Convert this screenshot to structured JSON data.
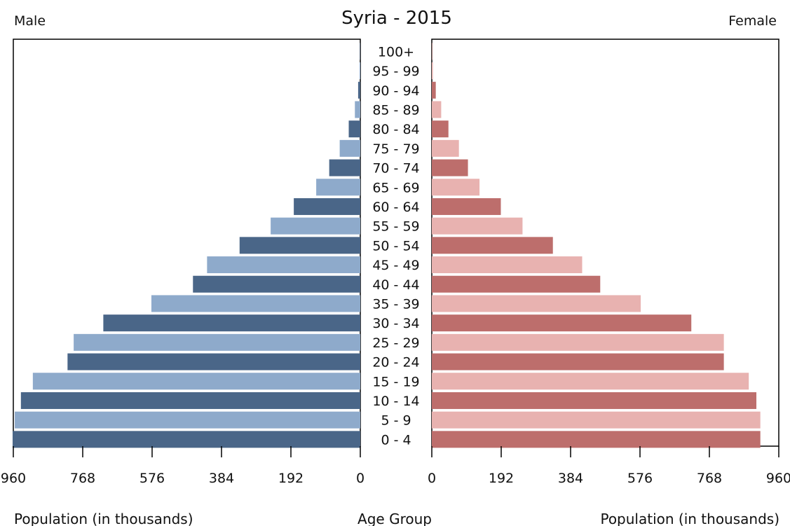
{
  "chart_data": {
    "type": "bar",
    "title": "Syria - 2015",
    "left_label": "Male",
    "right_label": "Female",
    "xlabel_left": "Population (in thousands)",
    "xlabel_center": "Age Group",
    "xlabel_right": "Population (in thousands)",
    "xlim": [
      0,
      960
    ],
    "x_ticks": [
      960,
      768,
      576,
      384,
      192,
      0
    ],
    "x_ticks_right": [
      0,
      192,
      384,
      576,
      768,
      960
    ],
    "categories": [
      "100+",
      "95 - 99",
      "90 - 94",
      "85 - 89",
      "80 - 84",
      "75 - 79",
      "70 - 74",
      "65 - 69",
      "60 - 64",
      "55 - 59",
      "50 - 54",
      "45 - 49",
      "40 - 44",
      "35 - 39",
      "30 - 34",
      "25 - 29",
      "20 - 24",
      "15 - 19",
      "10 - 14",
      "5 - 9",
      "0 - 4"
    ],
    "series": [
      {
        "name": "Male",
        "values": [
          1,
          2,
          6,
          15,
          32,
          57,
          86,
          122,
          184,
          248,
          334,
          424,
          463,
          578,
          711,
          793,
          810,
          906,
          939,
          956,
          962
        ]
      },
      {
        "name": "Female",
        "values": [
          1,
          3,
          11,
          26,
          46,
          75,
          100,
          132,
          191,
          251,
          335,
          416,
          466,
          578,
          718,
          808,
          808,
          877,
          898,
          909,
          909
        ]
      }
    ],
    "colors": {
      "male_dark": "#4a6688",
      "male_light": "#8eaacb",
      "female_dark": "#bd6e6c",
      "female_light": "#e8b2b0"
    },
    "grid": false
  }
}
